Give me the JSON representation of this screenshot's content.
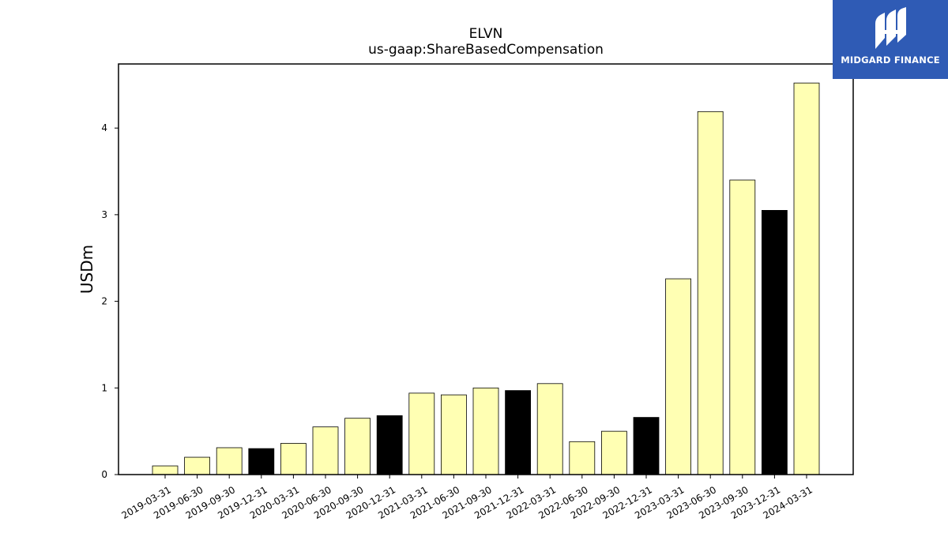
{
  "chart_data": {
    "type": "bar",
    "title": "ELVN",
    "subtitle": "us-gaap:ShareBasedCompensation",
    "ylabel": "USDm",
    "xlabel": "",
    "ylim": [
      0,
      4.74
    ],
    "yticks": [
      0,
      1,
      2,
      3,
      4
    ],
    "grid": false,
    "categories": [
      "2019-03-31",
      "2019-06-30",
      "2019-09-30",
      "2019-12-31",
      "2020-03-31",
      "2020-06-30",
      "2020-09-30",
      "2020-12-31",
      "2021-03-31",
      "2021-06-30",
      "2021-09-30",
      "2021-12-31",
      "2022-03-31",
      "2022-06-30",
      "2022-09-30",
      "2022-12-31",
      "2023-03-31",
      "2023-06-30",
      "2023-09-30",
      "2023-12-31",
      "2024-03-31"
    ],
    "values": [
      0.1,
      0.2,
      0.31,
      0.3,
      0.36,
      0.55,
      0.65,
      0.68,
      0.94,
      0.92,
      1.0,
      0.97,
      1.05,
      0.38,
      0.5,
      0.66,
      2.26,
      4.19,
      3.4,
      3.05,
      4.52
    ],
    "bar_colors": [
      "#ffffb3",
      "#ffffb3",
      "#ffffb3",
      "#000000",
      "#ffffb3",
      "#ffffb3",
      "#ffffb3",
      "#000000",
      "#ffffb3",
      "#ffffb3",
      "#ffffb3",
      "#000000",
      "#ffffb3",
      "#ffffb3",
      "#ffffb3",
      "#000000",
      "#ffffb3",
      "#ffffb3",
      "#ffffb3",
      "#000000",
      "#ffffb3"
    ]
  },
  "logo": {
    "text": "MIDGARD FINANCE",
    "background": "#2f5bb5",
    "icon": "midgard-logo-icon"
  }
}
